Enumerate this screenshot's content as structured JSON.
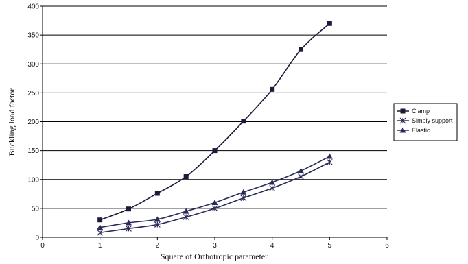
{
  "chart_data": {
    "type": "line",
    "title": "",
    "xlabel": "Square of Orthotropic parameter",
    "ylabel": "Buckling load factor",
    "xlim": [
      0,
      6
    ],
    "ylim": [
      0,
      400
    ],
    "x_ticks": [
      "0",
      "1",
      "2",
      "3",
      "4",
      "5",
      "6"
    ],
    "y_ticks": [
      "0",
      "50",
      "100",
      "150",
      "200",
      "250",
      "300",
      "350",
      "400"
    ],
    "grid": "horizontal",
    "legend_position": "right",
    "x": [
      1,
      1.5,
      2,
      2.5,
      3,
      3.5,
      4,
      4.5,
      5
    ],
    "series": [
      {
        "name": "Clamp",
        "marker": "square",
        "color": "#1a1a3a",
        "values": [
          30,
          49,
          76,
          105,
          150,
          201,
          256,
          325,
          370
        ]
      },
      {
        "name": "Simply support",
        "marker": "star",
        "color": "#2a2a5a",
        "values": [
          8,
          15,
          22,
          35,
          50,
          68,
          85,
          105,
          130
        ]
      },
      {
        "name": "Elastic",
        "marker": "triangle",
        "color": "#2a2a5a",
        "values": [
          17,
          25,
          31,
          45,
          60,
          78,
          95,
          115,
          140
        ]
      }
    ]
  }
}
